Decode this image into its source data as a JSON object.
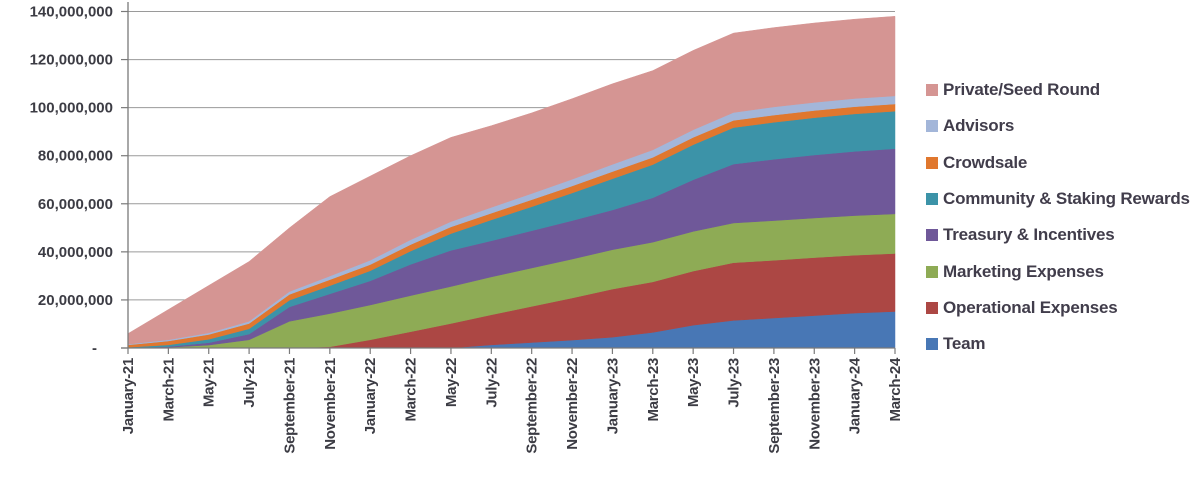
{
  "chart_data": {
    "type": "area",
    "stacked": true,
    "title": "",
    "xlabel": "",
    "ylabel": "",
    "ylim": [
      0,
      140000000
    ],
    "grid": "horizontal",
    "legend_position": "right",
    "y_tick_values": [
      0,
      20000000,
      40000000,
      60000000,
      80000000,
      100000000,
      120000000,
      140000000
    ],
    "y_tick_labels": [
      "-",
      "20,000,000",
      "40,000,000",
      "60,000,000",
      "80,000,000",
      "100,000,000",
      "120,000,000",
      "140,000,000"
    ],
    "x": [
      "January-21",
      "March-21",
      "May-21",
      "July-21",
      "September-21",
      "November-21",
      "January-22",
      "March-22",
      "May-22",
      "July-22",
      "September-22",
      "November-22",
      "January-23",
      "March-23",
      "May-23",
      "July-23",
      "September-23",
      "November-23",
      "January-24",
      "March-24"
    ],
    "series": [
      {
        "name": "Team",
        "color": "#4877B5",
        "values": [
          0,
          0,
          0,
          0,
          0,
          0,
          0,
          0,
          0,
          1300000,
          2300000,
          3300000,
          4500000,
          6500000,
          9500000,
          11500000,
          12500000,
          13500000,
          14500000,
          15200000
        ]
      },
      {
        "name": "Operational Expenses",
        "color": "#AC4744",
        "values": [
          0,
          0,
          0,
          0,
          0,
          500000,
          3400000,
          6800000,
          10200000,
          12500000,
          15000000,
          17500000,
          20000000,
          21000000,
          22500000,
          24000000,
          24000000,
          24100000,
          24100000,
          24100000
        ]
      },
      {
        "name": "Marketing Expenses",
        "color": "#8EAB55",
        "values": [
          0,
          300000,
          1200000,
          3400000,
          11100000,
          13800000,
          14500000,
          15000000,
          15400000,
          15800000,
          16000000,
          16200000,
          16400000,
          16500000,
          16500000,
          16500000,
          16500000,
          16500000,
          16500000,
          16500000
        ]
      },
      {
        "name": "Treasury & Incentives",
        "color": "#6F5899",
        "values": [
          0,
          300000,
          1000000,
          2400000,
          6000000,
          8200000,
          10000000,
          13000000,
          15000000,
          15000000,
          15500000,
          16000000,
          16500000,
          18500000,
          21500000,
          24500000,
          25500000,
          26200000,
          26700000,
          27100000
        ]
      },
      {
        "name": "Community & Staking Rewards",
        "color": "#3C93A8",
        "values": [
          300000,
          700000,
          1400000,
          2200000,
          2800000,
          3400000,
          4200000,
          5500000,
          7000000,
          8700000,
          10000000,
          11500000,
          13000000,
          13800000,
          14600000,
          15200000,
          15400000,
          15500000,
          15600000,
          15600000
        ]
      },
      {
        "name": "Crowdsale",
        "color": "#E0772E",
        "values": [
          1000000,
          1600000,
          2000000,
          2200000,
          2400000,
          2500000,
          2600000,
          2700000,
          2800000,
          2800000,
          2900000,
          2900000,
          3000000,
          3000000,
          3000000,
          3000000,
          3000000,
          3000000,
          3000000,
          3000000
        ]
      },
      {
        "name": "Advisors",
        "color": "#A3B6D9",
        "values": [
          300000,
          500000,
          700000,
          900000,
          1200000,
          1500000,
          1800000,
          2000000,
          2200000,
          2400000,
          2600000,
          2800000,
          3000000,
          3100000,
          3200000,
          3300000,
          3400000,
          3400000,
          3400000,
          3400000
        ]
      },
      {
        "name": "Private/Seed Round",
        "color": "#D59593",
        "values": [
          4400000,
          12600000,
          19700000,
          24900000,
          26500000,
          33100000,
          35000000,
          35000000,
          35000000,
          34000000,
          33500000,
          33500000,
          33500000,
          33000000,
          33000000,
          33000000,
          33000000,
          33000000,
          33000000,
          33100000
        ]
      }
    ],
    "legend_order_top_to_bottom": [
      "Private/Seed Round",
      "Advisors",
      "Crowdsale",
      "Community & Staking Rewards",
      "Treasury & Incentives",
      "Marketing Expenses",
      "Operational Expenses",
      "Team"
    ]
  },
  "style": {
    "grid_color": "#9a9a9a",
    "axis_color": "#7a7a7a",
    "axis_text_color": "#3c3c44",
    "legend_text_color": "#413d4b",
    "background": "#ffffff"
  }
}
